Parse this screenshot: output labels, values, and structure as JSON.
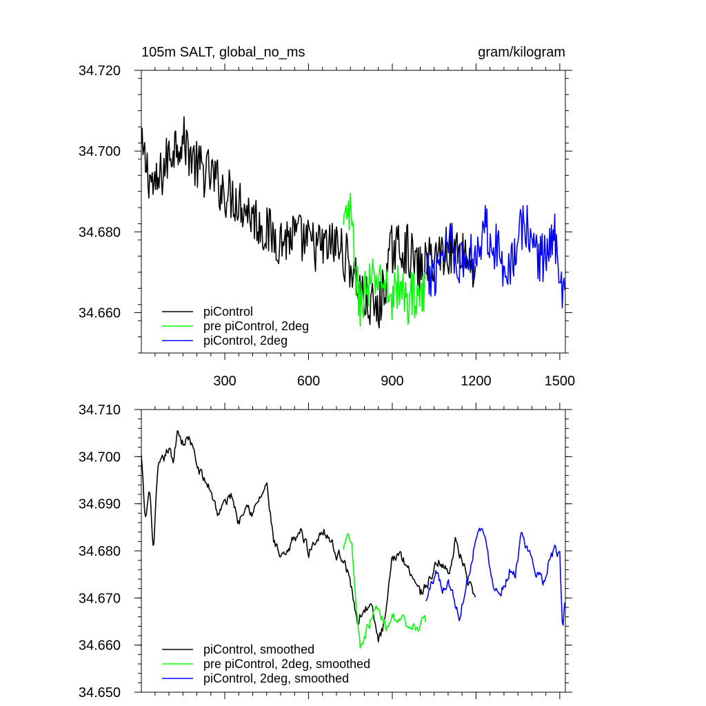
{
  "chart_data": [
    {
      "type": "line",
      "title_left": "105m SALT, global_no_ms",
      "title_right": "gram/kilogram",
      "xlim": [
        1,
        1520
      ],
      "ylim": [
        34.65,
        34.72
      ],
      "x_ticks": [
        300,
        600,
        900,
        1200,
        1500
      ],
      "x_tick_labels": [
        "300",
        "600",
        "900",
        "1200",
        "1500"
      ],
      "y_ticks": [
        34.66,
        34.68,
        34.7,
        34.72
      ],
      "y_tick_labels": [
        "34.660",
        "34.680",
        "34.700",
        "34.720"
      ],
      "legend_position": "bottom-left",
      "series": [
        {
          "name": "piControl",
          "color": "#000000",
          "x": [
            1,
            50,
            100,
            130,
            160,
            200,
            250,
            300,
            350,
            400,
            450,
            500,
            550,
            600,
            650,
            700,
            750,
            800,
            850,
            900,
            950,
            1000,
            1050,
            1100,
            1150,
            1200
          ],
          "y": [
            34.7,
            34.69,
            34.699,
            34.703,
            34.702,
            34.696,
            34.694,
            34.69,
            34.688,
            34.684,
            34.68,
            34.678,
            34.679,
            34.677,
            34.676,
            34.677,
            34.672,
            34.663,
            34.66,
            34.676,
            34.676,
            34.67,
            34.674,
            34.676,
            34.676,
            34.67
          ]
        },
        {
          "name": "pre piControl, 2deg",
          "color": "#00ff00",
          "x": [
            725,
            745,
            760,
            780,
            800,
            830,
            860,
            890,
            920,
            950,
            980,
            1000,
            1020
          ],
          "y": [
            34.68,
            34.685,
            34.678,
            34.662,
            34.665,
            34.667,
            34.669,
            34.664,
            34.666,
            34.663,
            34.665,
            34.664,
            34.664
          ]
        },
        {
          "name": "piControl, 2deg",
          "color": "#0000ff",
          "x": [
            1020,
            1050,
            1080,
            1110,
            1140,
            1170,
            1200,
            1230,
            1260,
            1290,
            1320,
            1350,
            1370,
            1400,
            1430,
            1460,
            1490,
            1510,
            1520
          ],
          "y": [
            34.668,
            34.67,
            34.676,
            34.679,
            34.672,
            34.673,
            34.675,
            34.682,
            34.678,
            34.673,
            34.672,
            34.676,
            34.683,
            34.678,
            34.673,
            34.676,
            34.679,
            34.664,
            34.67
          ]
        }
      ]
    },
    {
      "type": "line",
      "xlim": [
        1,
        1520
      ],
      "ylim": [
        34.65,
        34.71
      ],
      "x_ticks": [
        300,
        600,
        900,
        1200,
        1500
      ],
      "y_ticks": [
        34.65,
        34.66,
        34.67,
        34.68,
        34.69,
        34.7,
        34.71
      ],
      "y_tick_labels": [
        "34.650",
        "34.660",
        "34.670",
        "34.680",
        "34.690",
        "34.700",
        "34.710"
      ],
      "legend_position": "bottom-left",
      "series": [
        {
          "name": "piControl, smoothed",
          "color": "#000000",
          "x": [
            1,
            15,
            30,
            45,
            60,
            80,
            100,
            115,
            130,
            150,
            175,
            200,
            225,
            250,
            275,
            300,
            325,
            350,
            375,
            400,
            425,
            450,
            475,
            500,
            525,
            550,
            575,
            600,
            625,
            650,
            675,
            700,
            725,
            750,
            775,
            800,
            825,
            850,
            875,
            900,
            925,
            950,
            975,
            1000,
            1025,
            1050,
            1075,
            1100,
            1125,
            1150,
            1175,
            1200
          ],
          "y": [
            34.7,
            34.686,
            34.693,
            34.68,
            34.697,
            34.699,
            34.702,
            34.698,
            34.706,
            34.703,
            34.704,
            34.698,
            34.695,
            34.693,
            34.688,
            34.69,
            34.692,
            34.686,
            34.691,
            34.688,
            34.691,
            34.694,
            34.682,
            34.678,
            34.679,
            34.683,
            34.684,
            34.68,
            34.682,
            34.685,
            34.683,
            34.679,
            34.679,
            34.673,
            34.665,
            34.668,
            34.668,
            34.661,
            34.665,
            34.678,
            34.68,
            34.677,
            34.675,
            34.671,
            34.673,
            34.676,
            34.678,
            34.675,
            34.682,
            34.678,
            34.673,
            34.668
          ]
        },
        {
          "name": "pre piControl, 2deg, smoothed",
          "color": "#00ff00",
          "x": [
            725,
            740,
            755,
            770,
            785,
            800,
            820,
            840,
            860,
            880,
            900,
            920,
            940,
            960,
            980,
            1000,
            1020
          ],
          "y": [
            34.68,
            34.685,
            34.682,
            34.669,
            34.66,
            34.662,
            34.665,
            34.668,
            34.666,
            34.664,
            34.667,
            34.664,
            34.665,
            34.662,
            34.664,
            34.664,
            34.665
          ]
        },
        {
          "name": "piControl, 2deg, smoothed",
          "color": "#0000ff",
          "x": [
            1020,
            1040,
            1060,
            1080,
            1100,
            1120,
            1140,
            1160,
            1180,
            1200,
            1220,
            1240,
            1260,
            1280,
            1300,
            1320,
            1340,
            1360,
            1380,
            1400,
            1420,
            1440,
            1460,
            1480,
            1500,
            1510,
            1520
          ],
          "y": [
            34.669,
            34.673,
            34.676,
            34.671,
            34.674,
            34.67,
            34.666,
            34.672,
            34.676,
            34.684,
            34.685,
            34.68,
            34.674,
            34.671,
            34.673,
            34.676,
            34.675,
            34.683,
            34.68,
            34.678,
            34.675,
            34.673,
            34.678,
            34.68,
            34.679,
            34.663,
            34.671
          ]
        }
      ]
    }
  ]
}
